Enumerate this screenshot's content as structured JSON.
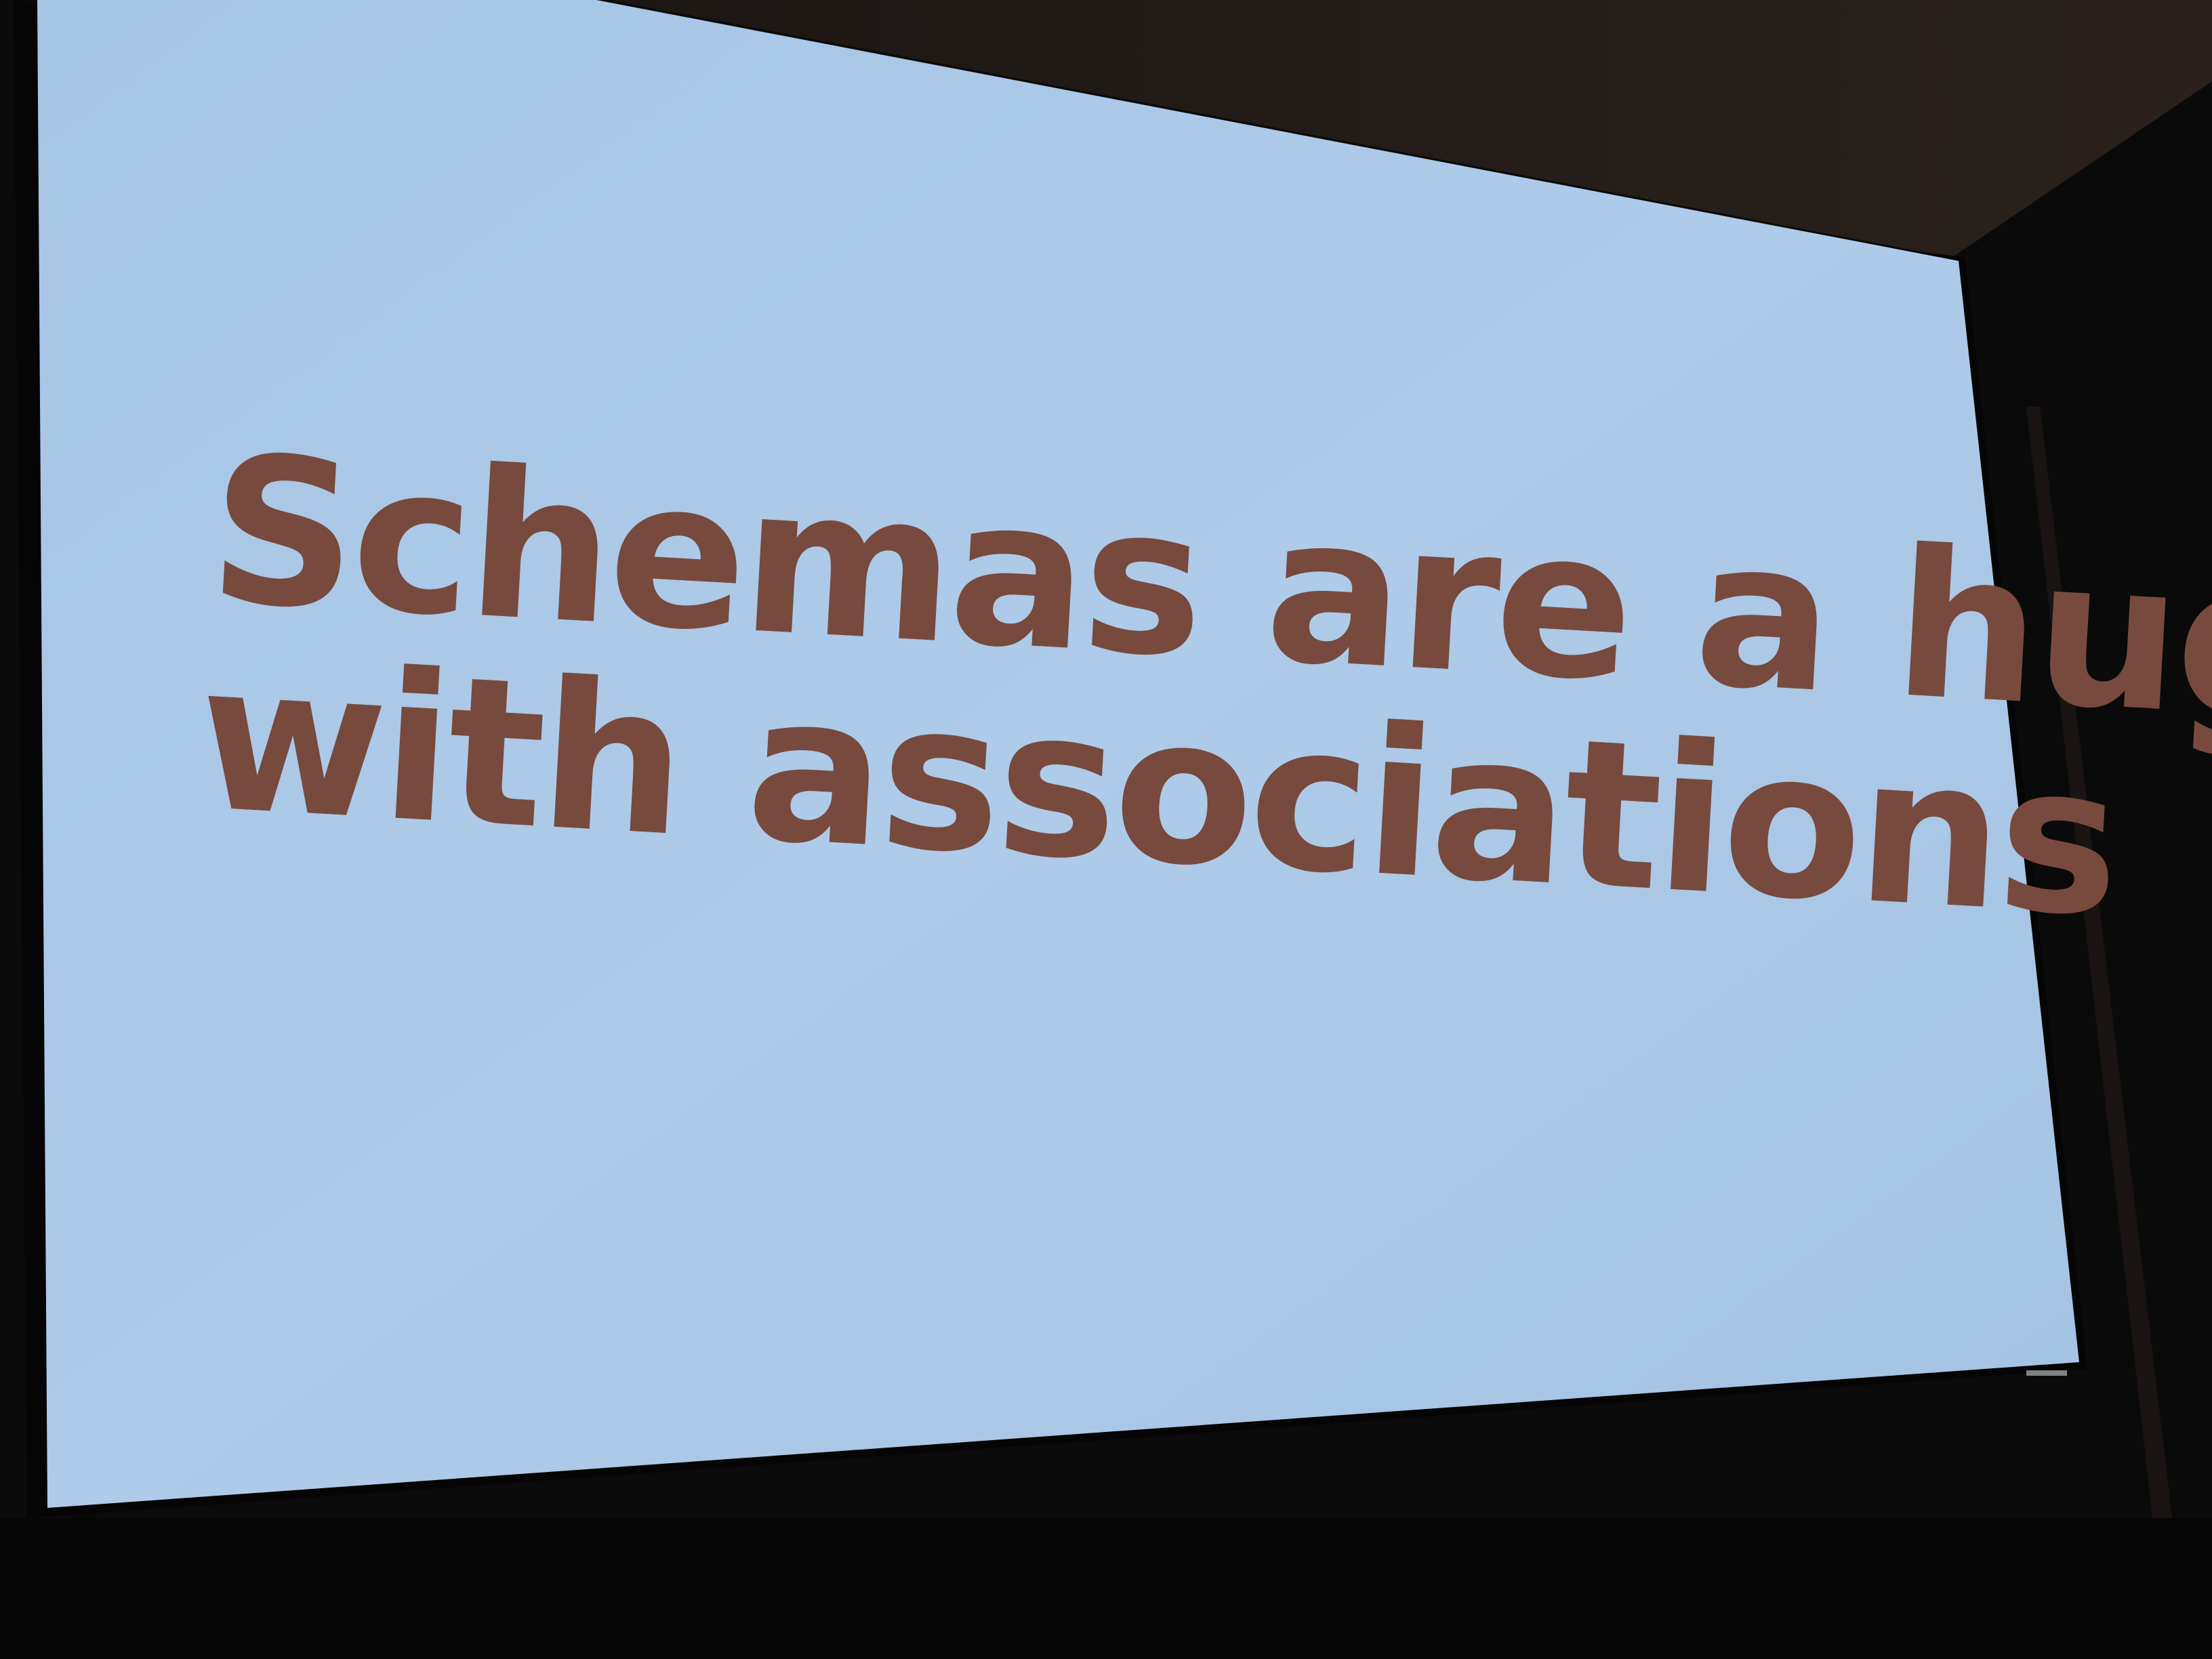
{
  "slide": {
    "line1": "Schemas are a huge help",
    "line2": "with associations",
    "text_color": "#774a3d",
    "screen_color": "#a8c6e6"
  }
}
